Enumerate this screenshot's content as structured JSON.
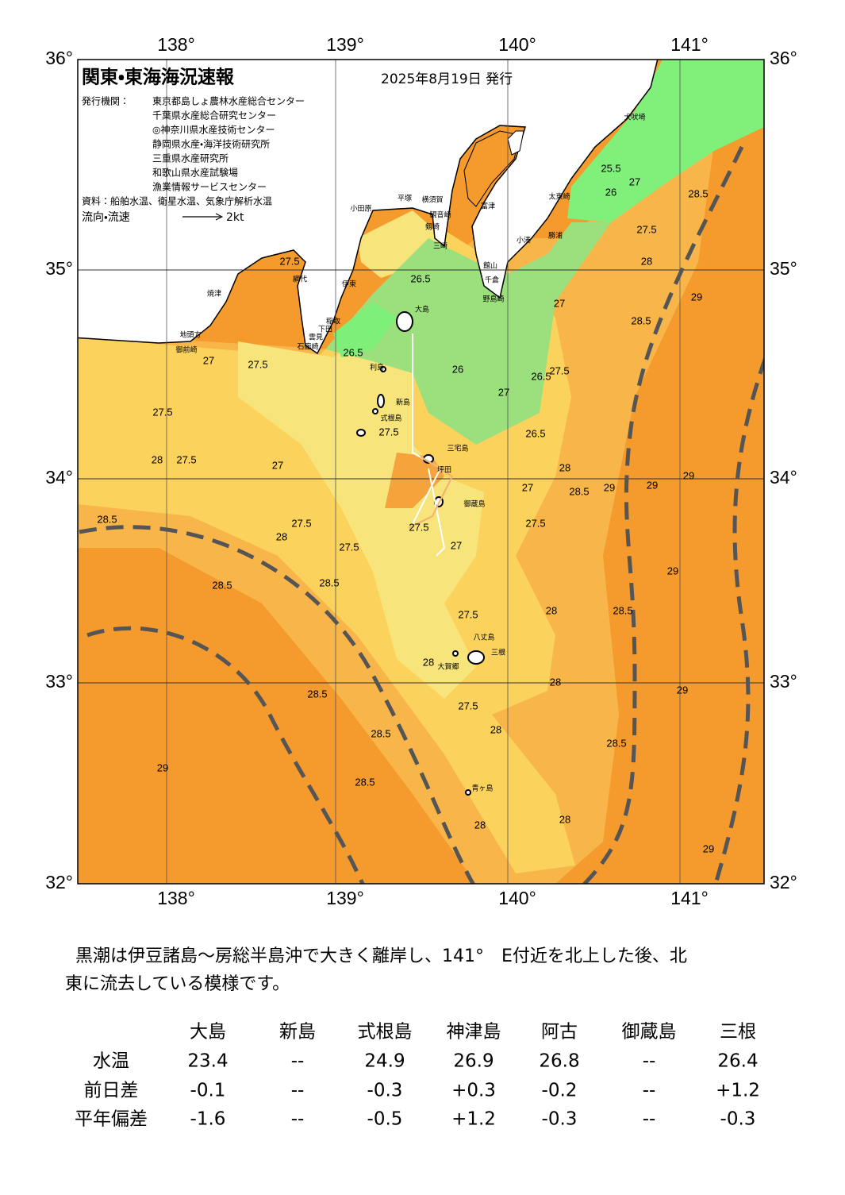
{
  "header": {
    "title": "関東・東海海況速報",
    "date": "2025年8月19日 発行",
    "issuer_label": "発行機関：",
    "issuers": [
      "東京都島しょ農林水産総合センター",
      "千葉県水産総合研究センター",
      "◎神奈川県水産技術センター",
      "静岡県水産・海洋技術研究所",
      "三重県水産研究所",
      "和歌山県水産試験場",
      "漁業情報サービスセンター"
    ],
    "source": "資料：船舶水温、衛星水温、気象庁解析水温",
    "flow_legend": "流向・流速",
    "flow_scale": "2kt"
  },
  "map": {
    "lon_labels": [
      "138°",
      "139°",
      "140°",
      "141°"
    ],
    "lat_labels": [
      "36°",
      "35°",
      "34°",
      "33°",
      "32°"
    ],
    "contour_labels": [
      "27.5",
      "26.5",
      "25.5",
      "26",
      "27",
      "28.5",
      "27.5",
      "28",
      "29",
      "28.5",
      "27",
      "26.5",
      "27.5",
      "26",
      "27",
      "26.5",
      "27.5",
      "27",
      "27.5",
      "27.5",
      "28",
      "27",
      "27.5",
      "26.5",
      "28",
      "29",
      "28.5",
      "29",
      "29",
      "28.5",
      "27",
      "27.5",
      "28",
      "27.5",
      "27.5",
      "27.5",
      "27",
      "28.5",
      "28.5",
      "29",
      "28",
      "28.5",
      "27.5",
      "28",
      "28",
      "29",
      "28.5",
      "27.5",
      "28.5",
      "28",
      "28.5",
      "29",
      "28.5",
      "28",
      "28",
      "29"
    ],
    "places": [
      "犬吠埼",
      "太東崎",
      "勝浦",
      "小湊",
      "富津",
      "横須賀",
      "平塚",
      "小田原",
      "観音崎",
      "剱崎",
      "三崎",
      "館山",
      "千倉",
      "野島崎",
      "網代",
      "伊東",
      "焼津",
      "稲取",
      "下田",
      "雲見",
      "石廊崎",
      "地頭方",
      "御前崎",
      "大島",
      "利島",
      "新島",
      "式根島",
      "三宅島",
      "坪田",
      "御蔵島",
      "八丈島",
      "三根",
      "大賀郷",
      "青ヶ島"
    ]
  },
  "comment": {
    "lines": [
      "黒潮は伊豆諸島～房総半島沖で大きく離岸し、141°　E付近を北上した後、北",
      "東に流去している模様です。"
    ]
  },
  "table": {
    "columns": [
      "大島",
      "新島",
      "式根島",
      "神津島",
      "阿古",
      "御蔵島",
      "三根"
    ],
    "rows": [
      [
        "水温",
        "23.4",
        "--",
        "24.9",
        "26.9",
        "26.8",
        "--",
        "26.4"
      ],
      [
        "前日差",
        "-0.1",
        "--",
        "-0.3",
        "+0.3",
        "-0.2",
        "--",
        "+1.2"
      ],
      [
        "平年偏差",
        "-1.6",
        "--",
        "-0.5",
        "+1.2",
        "-0.3",
        "--",
        "-0.3"
      ]
    ]
  }
}
